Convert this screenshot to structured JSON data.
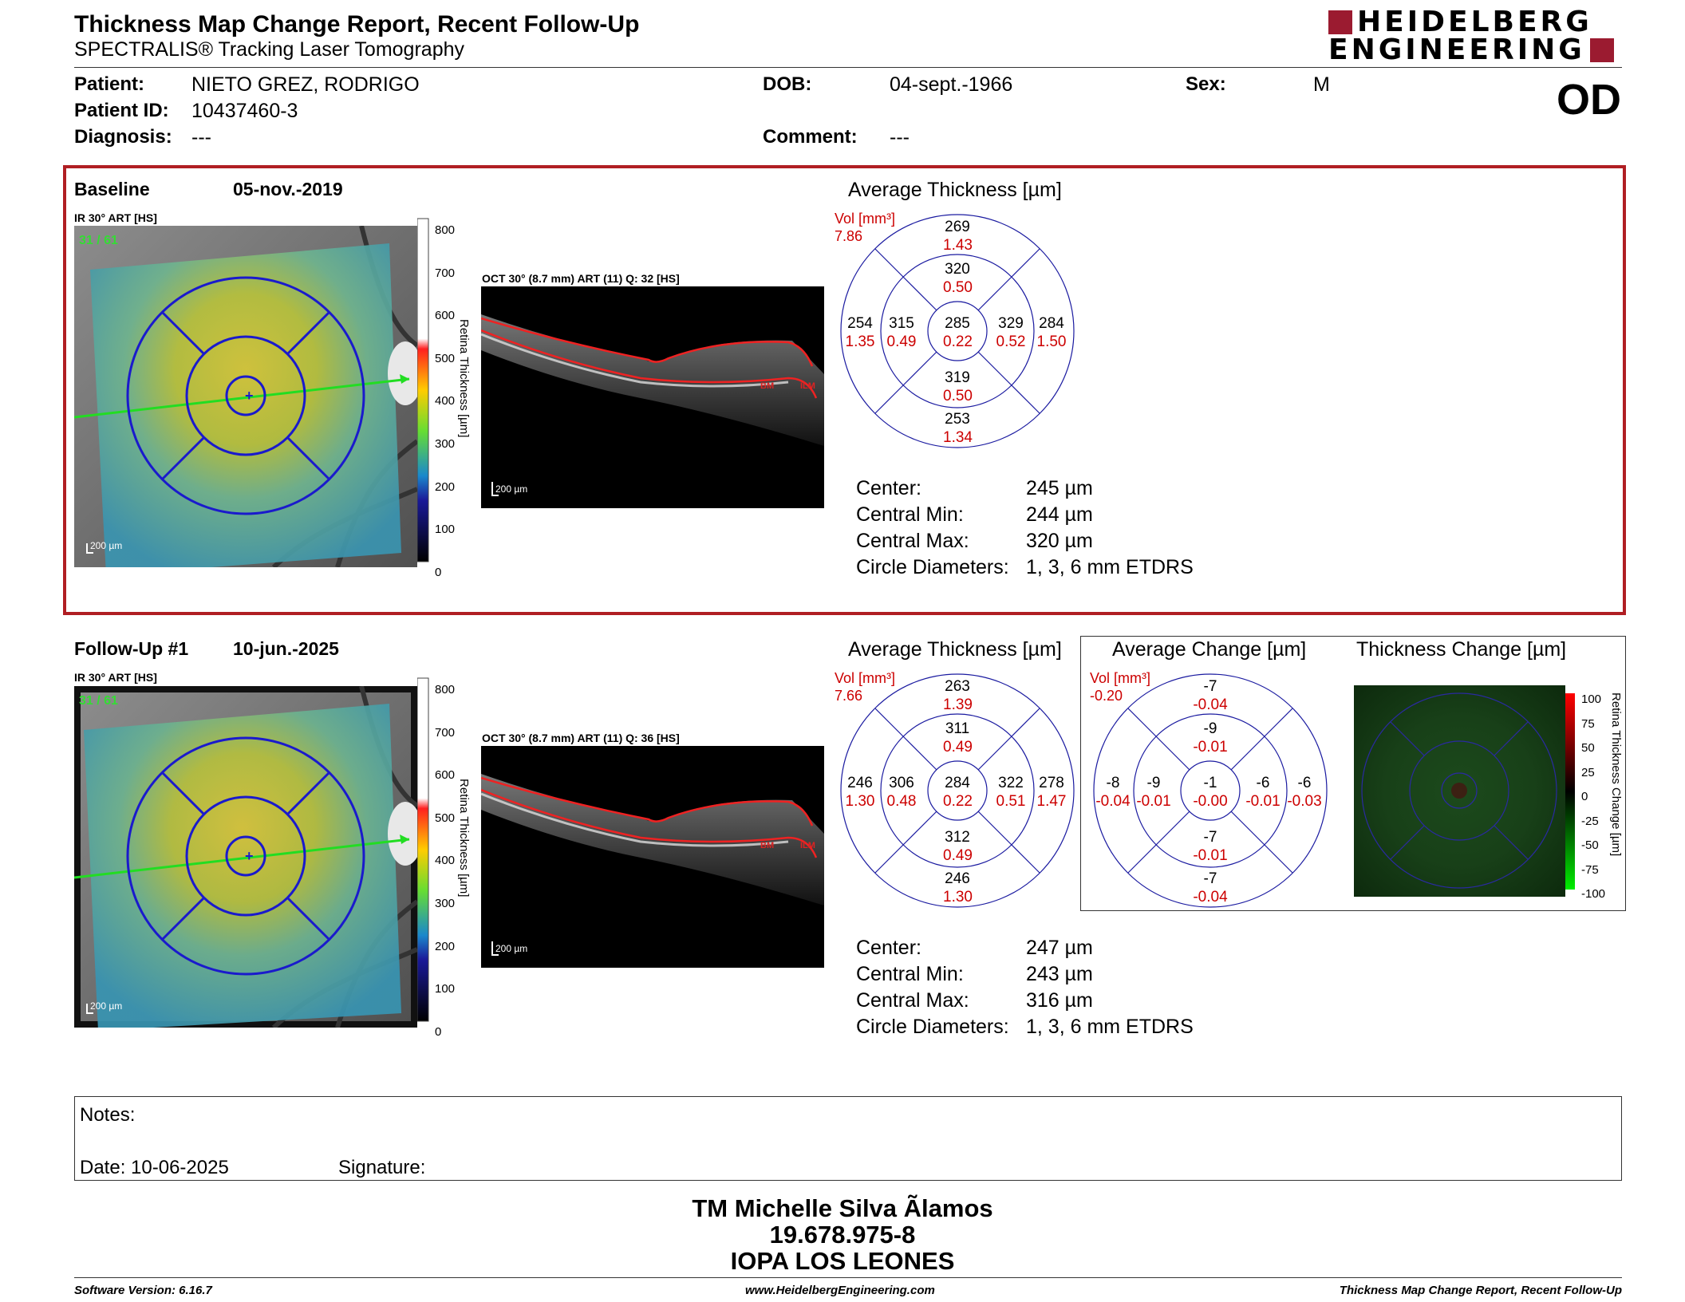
{
  "header": {
    "title": "Thickness Map Change Report, Recent Follow-Up",
    "subtitle": "SPECTRALIS® Tracking Laser Tomography",
    "logo_line1": "HEIDELBERG",
    "logo_line2": "ENGINEERING",
    "eye": "OD",
    "brand_color": "#9b1b30"
  },
  "patient": {
    "patient_label": "Patient:",
    "patient_value": "NIETO GREZ, RODRIGO",
    "id_label": "Patient ID:",
    "id_value": "10437460-3",
    "diag_label": "Diagnosis:",
    "diag_value": "---",
    "dob_label": "DOB:",
    "dob_value": "04-sept.-1966",
    "comment_label": "Comment:",
    "comment_value": "---",
    "sex_label": "Sex:",
    "sex_value": "M"
  },
  "baseline": {
    "label": "Baseline",
    "date": "05-nov.-2019",
    "ir_label": "IR 30° ART [HS]",
    "frame": "31 / 61",
    "scale": "200 µm",
    "oct_label": "OCT 30° (8.7 mm) ART (11) Q: 32 [HS]",
    "colorbar_ticks": [
      "800",
      "700",
      "600",
      "500",
      "400",
      "300",
      "200",
      "100",
      "0"
    ],
    "colorbar_title": "Retina Thickness [µm]",
    "grid_title": "Average Thickness [µm]",
    "vol_label": "Vol [mm³]",
    "vol_value": "7.86",
    "grid": {
      "center": [
        "285",
        "0.22"
      ],
      "inner_sup": [
        "320",
        "0.50"
      ],
      "inner_inf": [
        "319",
        "0.50"
      ],
      "inner_temp": [
        "315",
        "0.49"
      ],
      "inner_nasal": [
        "329",
        "0.52"
      ],
      "outer_sup": [
        "269",
        "1.43"
      ],
      "outer_inf": [
        "253",
        "1.34"
      ],
      "outer_temp": [
        "254",
        "1.35"
      ],
      "outer_nasal": [
        "284",
        "1.50"
      ]
    },
    "stats": [
      {
        "label": "Center:",
        "value": "245 µm"
      },
      {
        "label": "Central Min:",
        "value": "244 µm"
      },
      {
        "label": "Central Max:",
        "value": "320 µm"
      },
      {
        "label": "Circle Diameters:",
        "value": "1, 3, 6 mm ETDRS"
      }
    ]
  },
  "followup": {
    "label": "Follow-Up #1",
    "date": "10-jun.-2025",
    "ir_label": "IR 30° ART [HS]",
    "frame": "31 / 61",
    "scale": "200 µm",
    "oct_label": "OCT 30° (8.7 mm) ART (11) Q: 36 [HS]",
    "colorbar_ticks": [
      "800",
      "700",
      "600",
      "500",
      "400",
      "300",
      "200",
      "100",
      "0"
    ],
    "colorbar_title": "Retina Thickness [µm]",
    "grid_title": "Average Thickness [µm]",
    "vol_label": "Vol [mm³]",
    "vol_value": "7.66",
    "grid": {
      "center": [
        "284",
        "0.22"
      ],
      "inner_sup": [
        "311",
        "0.49"
      ],
      "inner_inf": [
        "312",
        "0.49"
      ],
      "inner_temp": [
        "306",
        "0.48"
      ],
      "inner_nasal": [
        "322",
        "0.51"
      ],
      "outer_sup": [
        "263",
        "1.39"
      ],
      "outer_inf": [
        "246",
        "1.30"
      ],
      "outer_temp": [
        "246",
        "1.30"
      ],
      "outer_nasal": [
        "278",
        "1.47"
      ]
    },
    "change_title": "Average Change [µm]",
    "change_vol_label": "Vol [mm³]",
    "change_vol_value": "-0.20",
    "change_grid": {
      "center": [
        "-1",
        "-0.00"
      ],
      "inner_sup": [
        "-9",
        "-0.01"
      ],
      "inner_inf": [
        "-7",
        "-0.01"
      ],
      "inner_temp": [
        "-9",
        "-0.01"
      ],
      "inner_nasal": [
        "-6",
        "-0.01"
      ],
      "outer_sup": [
        "-7",
        "-0.04"
      ],
      "outer_inf": [
        "-7",
        "-0.04"
      ],
      "outer_temp": [
        "-8",
        "-0.04"
      ],
      "outer_nasal": [
        "-6",
        "-0.03"
      ]
    },
    "thick_change_title": "Thickness Change [µm]",
    "change_bar_ticks": [
      "100",
      "75",
      "50",
      "25",
      "0",
      "-25",
      "-50",
      "-75",
      "-100"
    ],
    "change_bar_title": "Retina Thickness Change [µm]",
    "stats": [
      {
        "label": "Center:",
        "value": "247 µm"
      },
      {
        "label": "Central Min:",
        "value": "243 µm"
      },
      {
        "label": "Central Max:",
        "value": "316 µm"
      },
      {
        "label": "Circle Diameters:",
        "value": "1, 3, 6 mm ETDRS"
      }
    ]
  },
  "notes": {
    "notes_label": "Notes:",
    "date_label": "Date: 10-06-2025",
    "signature_label": "Signature:"
  },
  "signer": {
    "name": "TM Michelle Silva Ãlamos",
    "rut": "19.678.975-8",
    "org": "IOPA LOS LEONES"
  },
  "footer": {
    "left": "Software Version: 6.16.7",
    "center": "www.HeidelbergEngineering.com",
    "right": "Thickness Map Change Report, Recent Follow-Up"
  },
  "colors": {
    "section_border": "#b01e23",
    "values_red": "#cc0000",
    "grid_blue": "#1a1aa0"
  }
}
